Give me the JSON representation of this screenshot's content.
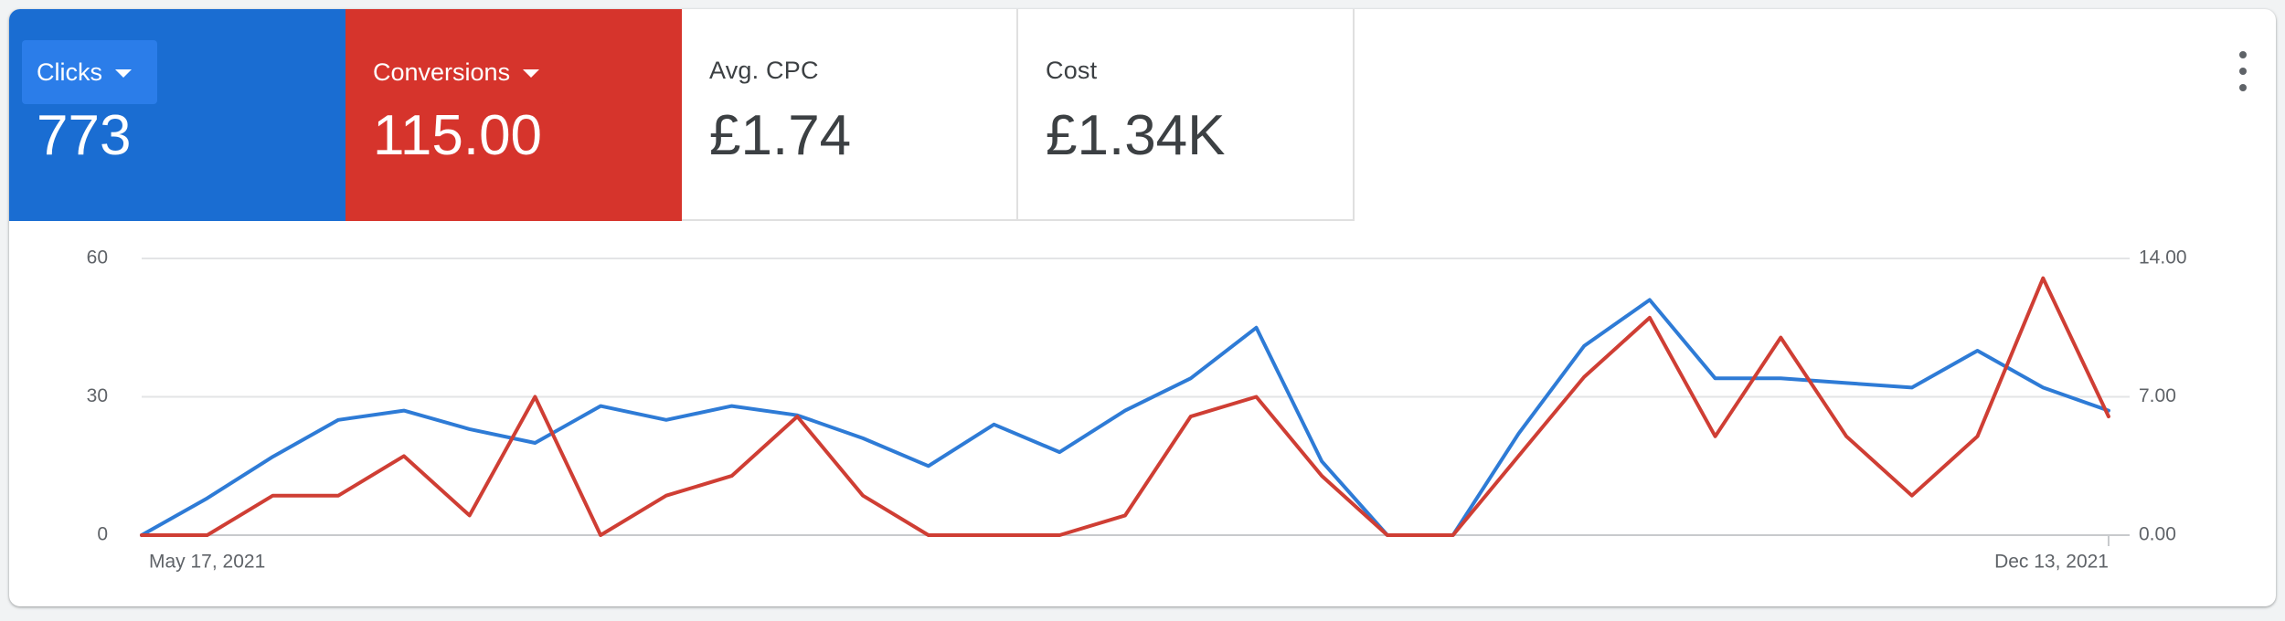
{
  "tiles": [
    {
      "label": "Clicks",
      "value": "773",
      "color": "#1a6dd2",
      "dropdown": true,
      "dropdown_bg": "#2b7de9"
    },
    {
      "label": "Conversions",
      "value": "115.00",
      "color": "#d6342c",
      "dropdown": true,
      "dropdown_bg": "#d6342c"
    },
    {
      "label": "Avg. CPC",
      "value": "£1.74",
      "color": "#ffffff",
      "dropdown": false
    },
    {
      "label": "Cost",
      "value": "£1.34K",
      "color": "#ffffff",
      "dropdown": false
    }
  ],
  "menu_icon": "more-vert-icon",
  "chart_data": {
    "type": "line",
    "x_start_label": "May 17, 2021",
    "x_end_label": "Dec 13, 2021",
    "left_axis": {
      "ticks": [
        "60",
        "30",
        "0"
      ],
      "range": [
        0,
        60
      ]
    },
    "right_axis": {
      "ticks": [
        "14.00",
        "7.00",
        "0.00"
      ],
      "range": [
        0,
        14
      ]
    },
    "grid": true,
    "series": [
      {
        "axis": "left",
        "color": "#2e7bd6",
        "values": [
          0,
          8,
          17,
          25,
          27,
          23,
          20,
          28,
          25,
          28,
          26,
          21,
          15,
          24,
          18,
          27,
          34,
          45,
          16,
          0,
          0,
          22,
          41,
          51,
          34,
          34,
          33,
          32,
          40,
          32,
          27
        ]
      },
      {
        "axis": "right",
        "color": "#cf3e34",
        "values": [
          0,
          0,
          2,
          2,
          4,
          1,
          7,
          0,
          2,
          3,
          6,
          2,
          0,
          0,
          0,
          1,
          6,
          7,
          3,
          0,
          0,
          4,
          8,
          11,
          5,
          10,
          5,
          2,
          5,
          13,
          6
        ]
      }
    ]
  }
}
